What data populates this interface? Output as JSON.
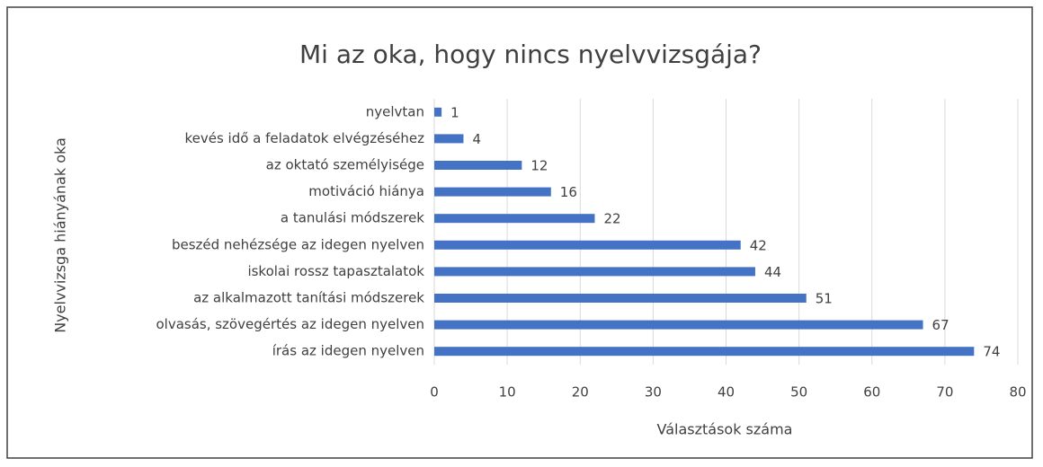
{
  "chart_data": {
    "type": "barh",
    "title": "Mi az oka, hogy nincs nyelvvizsgája?",
    "xlabel": "Választások száma",
    "ylabel": "Nyelvvizsga hiányának oka",
    "categories": [
      "nyelvtan",
      "kevés idő a feladatok elvégzéséhez",
      "az oktató személyisége",
      "motiváció hiánya",
      "a tanulási módszerek",
      "beszéd nehézsége az idegen nyelven",
      "iskolai rossz tapasztalatok",
      "az alkalmazott tanítási módszerek",
      "olvasás, szövegértés az idegen nyelven",
      "írás az idegen nyelven"
    ],
    "values": [
      1,
      4,
      12,
      16,
      22,
      42,
      44,
      51,
      67,
      74
    ],
    "color": "#4472c4",
    "xlim": [
      0,
      80
    ],
    "xticks": [
      0,
      10,
      20,
      30,
      40,
      50,
      60,
      70,
      80
    ],
    "grid": true
  }
}
